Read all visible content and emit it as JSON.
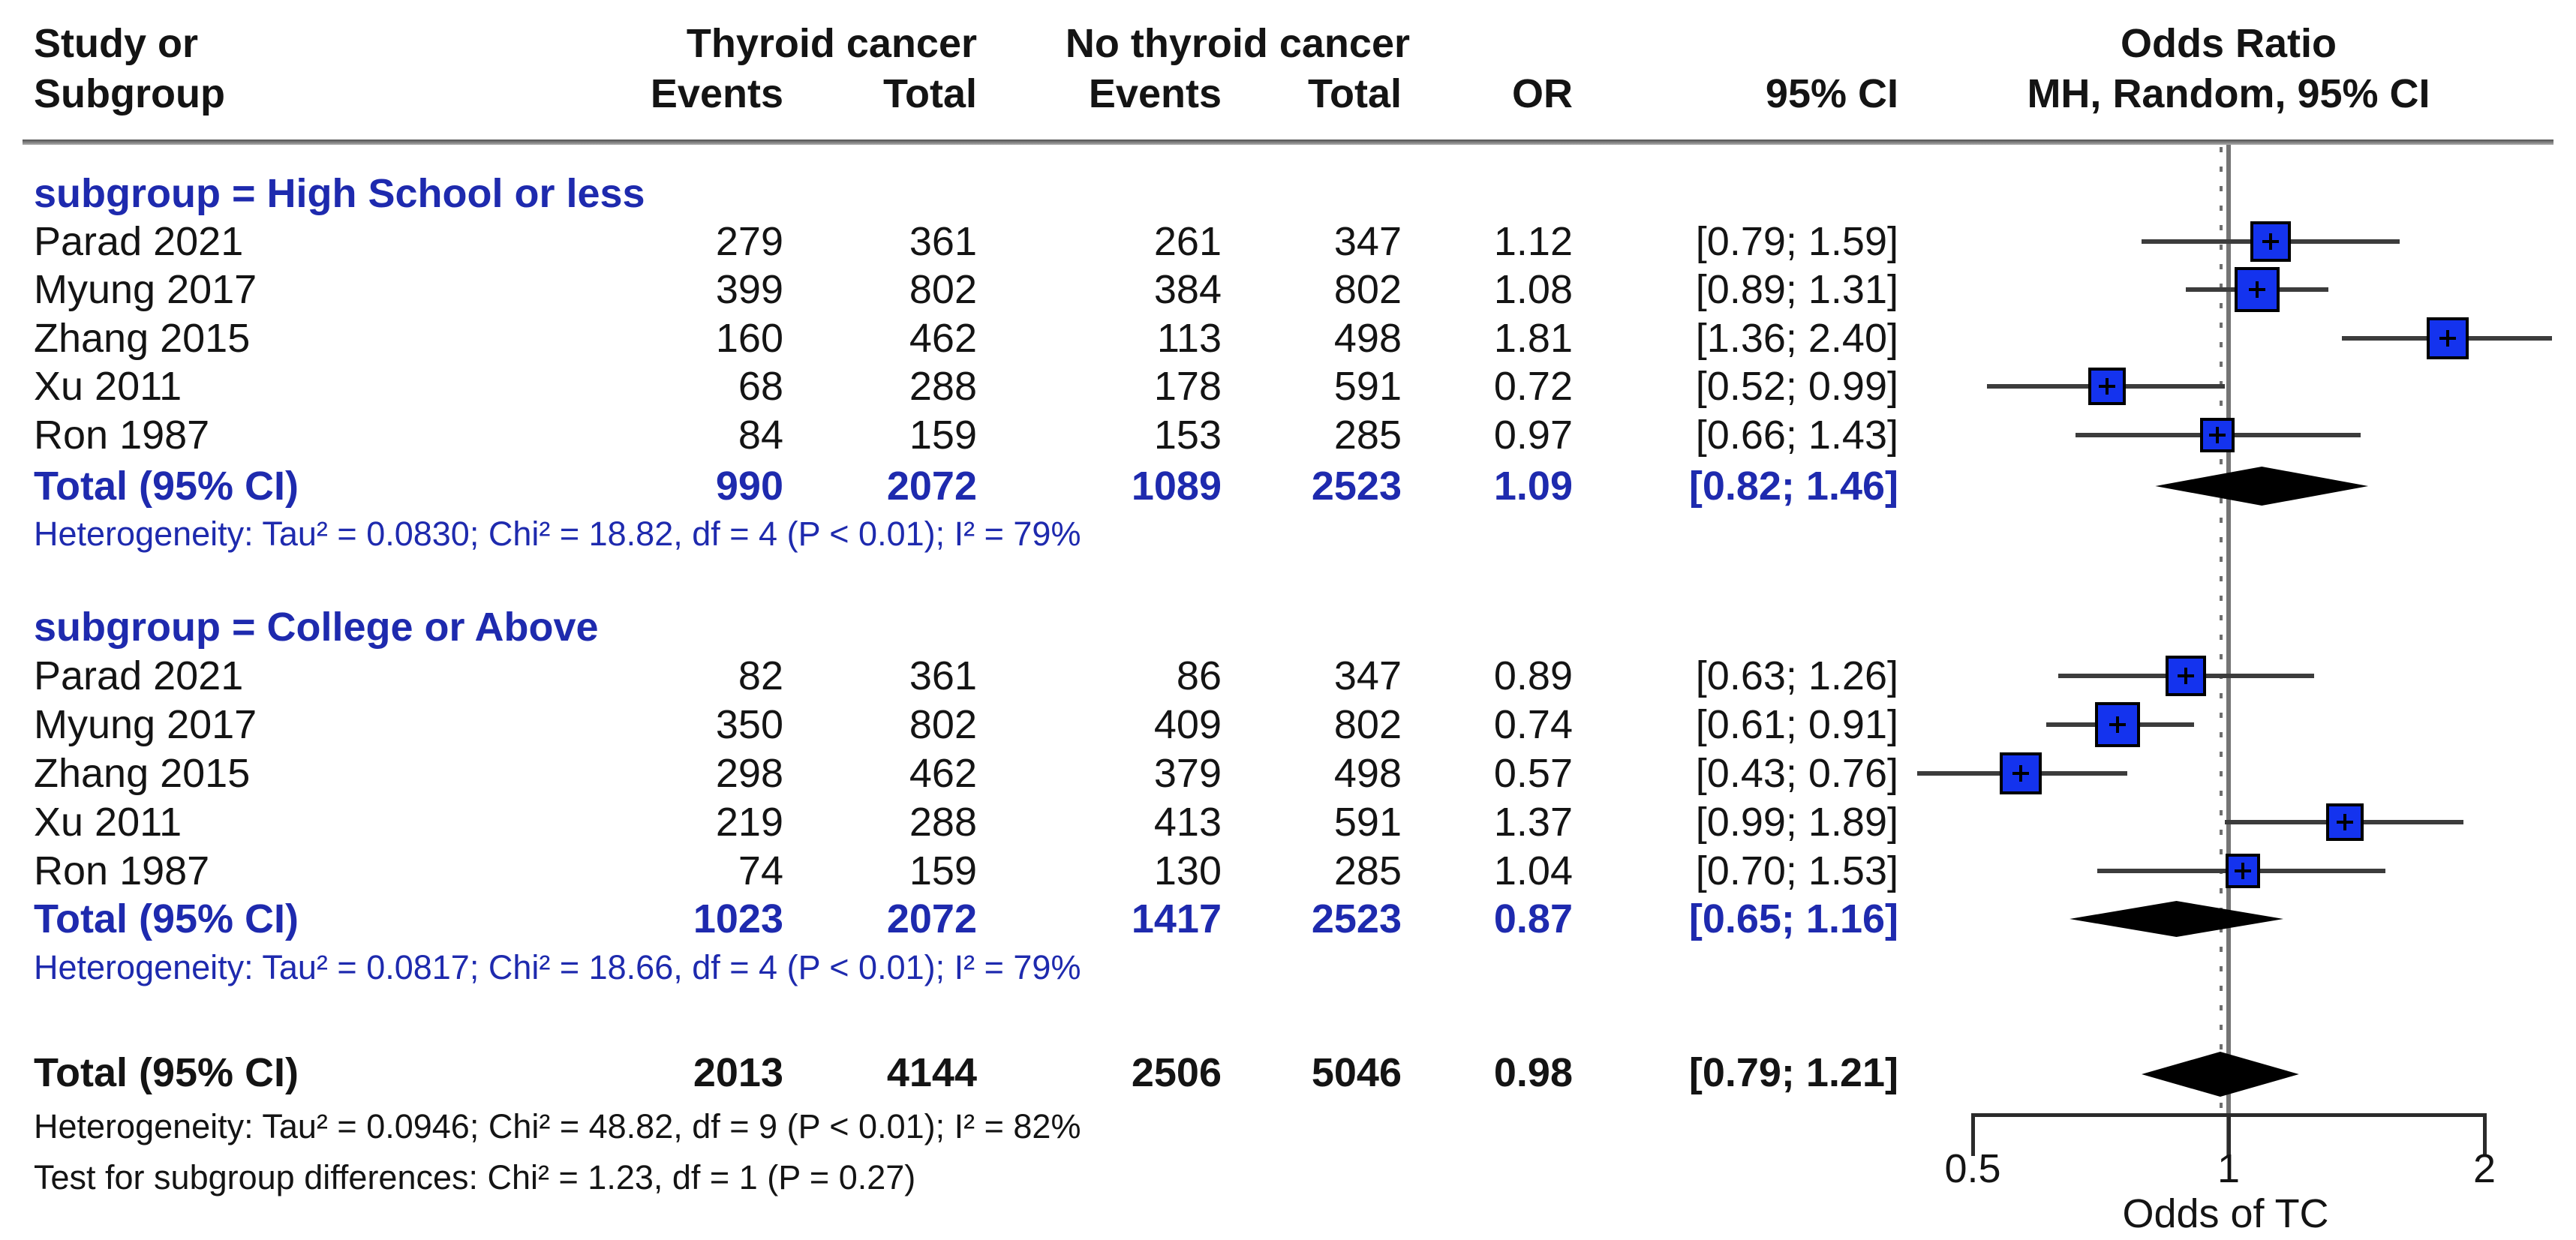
{
  "header": {
    "col_study_line1": "Study or",
    "col_study_line2": "Subgroup",
    "group1_label": "Thyroid cancer",
    "group2_label": "No thyroid cancer",
    "events_label": "Events",
    "total_label": "Total",
    "or_label": "OR",
    "ci_label": "95% CI",
    "plot_title_line1": "Odds Ratio",
    "plot_title_line2": "MH, Random, 95% CI"
  },
  "sections": [
    {
      "title": "subgroup = High School or less",
      "rows": [
        {
          "study": "Parad 2021",
          "e1": "279",
          "t1": "361",
          "e2": "261",
          "t2": "347",
          "or": "1.12",
          "ci": "[0.79; 1.59]"
        },
        {
          "study": "Myung 2017",
          "e1": "399",
          "t1": "802",
          "e2": "384",
          "t2": "802",
          "or": "1.08",
          "ci": "[0.89; 1.31]"
        },
        {
          "study": "Zhang 2015",
          "e1": "160",
          "t1": "462",
          "e2": "113",
          "t2": "498",
          "or": "1.81",
          "ci": "[1.36; 2.40]"
        },
        {
          "study": "Xu 2011",
          "e1": "68",
          "t1": "288",
          "e2": "178",
          "t2": "591",
          "or": "0.72",
          "ci": "[0.52; 0.99]"
        },
        {
          "study": "Ron 1987",
          "e1": "84",
          "t1": "159",
          "e2": "153",
          "t2": "285",
          "or": "0.97",
          "ci": "[0.66; 1.43]"
        }
      ],
      "total": {
        "study": "Total (95% CI)",
        "e1": "990",
        "t1": "2072",
        "e2": "1089",
        "t2": "2523",
        "or": "1.09",
        "ci": "[0.82; 1.46]"
      },
      "footnotes": [
        "Heterogeneity: Tau² = 0.0830; Chi² = 18.82, df = 4 (P < 0.01); I² = 79%"
      ]
    },
    {
      "title": "subgroup = College or Above",
      "rows": [
        {
          "study": "Parad 2021",
          "e1": "82",
          "t1": "361",
          "e2": "86",
          "t2": "347",
          "or": "0.89",
          "ci": "[0.63; 1.26]"
        },
        {
          "study": "Myung 2017",
          "e1": "350",
          "t1": "802",
          "e2": "409",
          "t2": "802",
          "or": "0.74",
          "ci": "[0.61; 0.91]"
        },
        {
          "study": "Zhang 2015",
          "e1": "298",
          "t1": "462",
          "e2": "379",
          "t2": "498",
          "or": "0.57",
          "ci": "[0.43; 0.76]"
        },
        {
          "study": "Xu 2011",
          "e1": "219",
          "t1": "288",
          "e2": "413",
          "t2": "591",
          "or": "1.37",
          "ci": "[0.99; 1.89]"
        },
        {
          "study": "Ron 1987",
          "e1": "74",
          "t1": "159",
          "e2": "130",
          "t2": "285",
          "or": "1.04",
          "ci": "[0.70; 1.53]"
        }
      ],
      "total": {
        "study": "Total (95% CI)",
        "e1": "1023",
        "t1": "2072",
        "e2": "1417",
        "t2": "2523",
        "or": "0.87",
        "ci": "[0.65; 1.16]"
      },
      "footnotes": [
        "Heterogeneity: Tau² = 0.0817; Chi² = 18.66, df = 4 (P < 0.01); I² = 79%"
      ]
    },
    {
      "title": null,
      "rows": [],
      "total": {
        "study": "Total (95% CI)",
        "e1": "2013",
        "t1": "4144",
        "e2": "2506",
        "t2": "5046",
        "or": "0.98",
        "ci": "[0.79; 1.21]"
      },
      "footnotes": [
        "Heterogeneity: Tau² = 0.0946; Chi² = 48.82, df = 9 (P < 0.01); I² = 82%",
        "Test for subgroup differences: Chi² = 1.23, df = 1 (P = 0.27)"
      ]
    }
  ],
  "chart_data": {
    "type": "forest",
    "title": "Odds Ratio MH, Random, 95% CI",
    "x_axis": {
      "scale": "log",
      "ticks": [
        "0.5",
        "1",
        "2"
      ],
      "tick_values": [
        0.5,
        1,
        2
      ],
      "label": "Odds of TC",
      "range": [
        0.43,
        2.4
      ]
    },
    "reference_line": 1,
    "overall_effect_line": 0.98,
    "legend_position": "none",
    "grid": false,
    "groups": [
      {
        "name": "High School or less",
        "studies": [
          {
            "study": "Parad 2021",
            "or": 1.12,
            "lo": 0.79,
            "hi": 1.59
          },
          {
            "study": "Myung 2017",
            "or": 1.08,
            "lo": 0.89,
            "hi": 1.31
          },
          {
            "study": "Zhang 2015",
            "or": 1.81,
            "lo": 1.36,
            "hi": 2.4
          },
          {
            "study": "Xu 2011",
            "or": 0.72,
            "lo": 0.52,
            "hi": 0.99
          },
          {
            "study": "Ron 1987",
            "or": 0.97,
            "lo": 0.66,
            "hi": 1.43
          }
        ],
        "summary": {
          "or": 1.09,
          "lo": 0.82,
          "hi": 1.46
        }
      },
      {
        "name": "College or Above",
        "studies": [
          {
            "study": "Parad 2021",
            "or": 0.89,
            "lo": 0.63,
            "hi": 1.26
          },
          {
            "study": "Myung 2017",
            "or": 0.74,
            "lo": 0.61,
            "hi": 0.91
          },
          {
            "study": "Zhang 2015",
            "or": 0.57,
            "lo": 0.43,
            "hi": 0.76
          },
          {
            "study": "Xu 2011",
            "or": 1.37,
            "lo": 0.99,
            "hi": 1.89
          },
          {
            "study": "Ron 1987",
            "or": 1.04,
            "lo": 0.7,
            "hi": 1.53
          }
        ],
        "summary": {
          "or": 0.87,
          "lo": 0.65,
          "hi": 1.16
        }
      }
    ],
    "overall_summary": {
      "or": 0.98,
      "lo": 0.79,
      "hi": 1.21
    },
    "colors": {
      "square": "#1433ee",
      "square_border": "#000000",
      "diamond": "#000000",
      "blue_text": "#1e2aae",
      "ci_line": "#3c3c3c",
      "axis": "#2b2b2b",
      "reference_line": "#757575",
      "text": "#141414"
    }
  }
}
